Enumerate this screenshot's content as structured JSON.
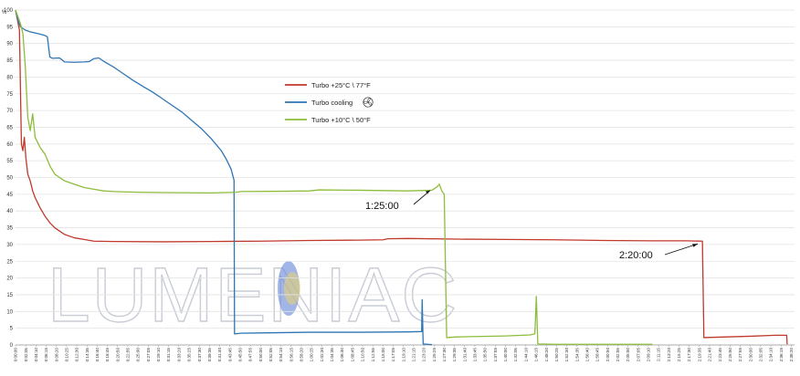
{
  "chart_data": {
    "type": "line",
    "ylabel": "%",
    "ylim": [
      0,
      100
    ],
    "yticks": [
      0,
      5,
      10,
      15,
      20,
      25,
      30,
      35,
      40,
      45,
      50,
      55,
      60,
      65,
      70,
      75,
      80,
      85,
      90,
      95,
      100
    ],
    "xlim_min": [
      0,
      159
    ],
    "xtick_step_min": 2.0833,
    "grid": "horizontal",
    "legend_position": "center-left",
    "watermark": "LUMENIAC",
    "series": [
      {
        "name": "Turbo +25°C \\ 77°F",
        "color": "#c0392b",
        "points": [
          [
            0,
            100
          ],
          [
            0.4,
            97
          ],
          [
            0.8,
            94
          ],
          [
            1.2,
            60
          ],
          [
            1.5,
            58
          ],
          [
            1.8,
            62
          ],
          [
            2.1,
            56
          ],
          [
            2.5,
            51
          ],
          [
            3,
            49
          ],
          [
            3.5,
            46
          ],
          [
            4,
            44
          ],
          [
            5,
            41
          ],
          [
            6,
            38.5
          ],
          [
            7,
            36.5
          ],
          [
            8,
            35
          ],
          [
            9,
            34
          ],
          [
            10,
            33
          ],
          [
            12,
            32
          ],
          [
            14,
            31.5
          ],
          [
            16,
            31
          ],
          [
            20,
            30.9
          ],
          [
            30,
            30.8
          ],
          [
            40,
            30.9
          ],
          [
            50,
            31
          ],
          [
            60,
            31.2
          ],
          [
            70,
            31.3
          ],
          [
            75,
            31.4
          ],
          [
            76,
            31.7
          ],
          [
            80,
            31.8
          ],
          [
            90,
            31.6
          ],
          [
            100,
            31.5
          ],
          [
            110,
            31.4
          ],
          [
            120,
            31.2
          ],
          [
            130,
            31.1
          ],
          [
            137,
            31.1
          ],
          [
            140.2,
            31
          ],
          [
            140.5,
            2.2
          ],
          [
            145,
            2.4
          ],
          [
            150,
            2.6
          ],
          [
            155,
            2.9
          ],
          [
            157.4,
            2.9
          ],
          [
            157.5,
            0.2
          ]
        ]
      },
      {
        "name": "Turbo cooling",
        "color": "#2e75b6",
        "points": [
          [
            0,
            100
          ],
          [
            0.5,
            97
          ],
          [
            1,
            95
          ],
          [
            2,
            94
          ],
          [
            3,
            93.5
          ],
          [
            5,
            92.8
          ],
          [
            6,
            92.4
          ],
          [
            6.5,
            92
          ],
          [
            7,
            86
          ],
          [
            7.5,
            85.6
          ],
          [
            9,
            85.7
          ],
          [
            10,
            84.5
          ],
          [
            12,
            84.4
          ],
          [
            14,
            84.5
          ],
          [
            15,
            84.6
          ],
          [
            16,
            85.5
          ],
          [
            17,
            85.7
          ],
          [
            18,
            84.7
          ],
          [
            20,
            83
          ],
          [
            22,
            81
          ],
          [
            24,
            79
          ],
          [
            26,
            77.2
          ],
          [
            28,
            75.5
          ],
          [
            30,
            73.5
          ],
          [
            32,
            71.5
          ],
          [
            34,
            69.5
          ],
          [
            36,
            67
          ],
          [
            38,
            64.5
          ],
          [
            40,
            61.5
          ],
          [
            42,
            58
          ],
          [
            43,
            55.5
          ],
          [
            44,
            52.5
          ],
          [
            44.6,
            49.2
          ],
          [
            44.7,
            3.3
          ],
          [
            46,
            3.5
          ],
          [
            50,
            3.6
          ],
          [
            60,
            3.8
          ],
          [
            70,
            3.8
          ],
          [
            80,
            3.9
          ],
          [
            82.9,
            4
          ],
          [
            83,
            13.5
          ],
          [
            83.2,
            0.3
          ],
          [
            85,
            0.1
          ]
        ]
      },
      {
        "name": "Turbo +10°C \\ 50°F",
        "color": "#8dbd3c",
        "points": [
          [
            0,
            100
          ],
          [
            0.5,
            98
          ],
          [
            1,
            96
          ],
          [
            1.5,
            93
          ],
          [
            2,
            83
          ],
          [
            2.5,
            68
          ],
          [
            3,
            64
          ],
          [
            3.5,
            69
          ],
          [
            4,
            62
          ],
          [
            5,
            59
          ],
          [
            6,
            57
          ],
          [
            7,
            53.5
          ],
          [
            8,
            51
          ],
          [
            9,
            50
          ],
          [
            10,
            49
          ],
          [
            12,
            48
          ],
          [
            14,
            47
          ],
          [
            16,
            46.5
          ],
          [
            18,
            46
          ],
          [
            20,
            45.8
          ],
          [
            25,
            45.6
          ],
          [
            30,
            45.5
          ],
          [
            40,
            45.4
          ],
          [
            45,
            45.6
          ],
          [
            46,
            45.8
          ],
          [
            55,
            45.9
          ],
          [
            60,
            46
          ],
          [
            62,
            46.3
          ],
          [
            70,
            46.2
          ],
          [
            80,
            46
          ],
          [
            85,
            46.2
          ],
          [
            86,
            47.2
          ],
          [
            86.5,
            48
          ],
          [
            87,
            46
          ],
          [
            87.5,
            45
          ],
          [
            88,
            2.2
          ],
          [
            90,
            2.4
          ],
          [
            100,
            2.7
          ],
          [
            105,
            3
          ],
          [
            106,
            3.3
          ],
          [
            106.3,
            14.5
          ],
          [
            106.6,
            0.3
          ],
          [
            110,
            0.2
          ],
          [
            130,
            0.2
          ]
        ]
      }
    ],
    "annotations": [
      {
        "text": "1:25:00",
        "at_min": 85,
        "at_y": 47.5
      },
      {
        "text": "2:20:00",
        "at_min": 140,
        "at_y": 31
      }
    ]
  }
}
